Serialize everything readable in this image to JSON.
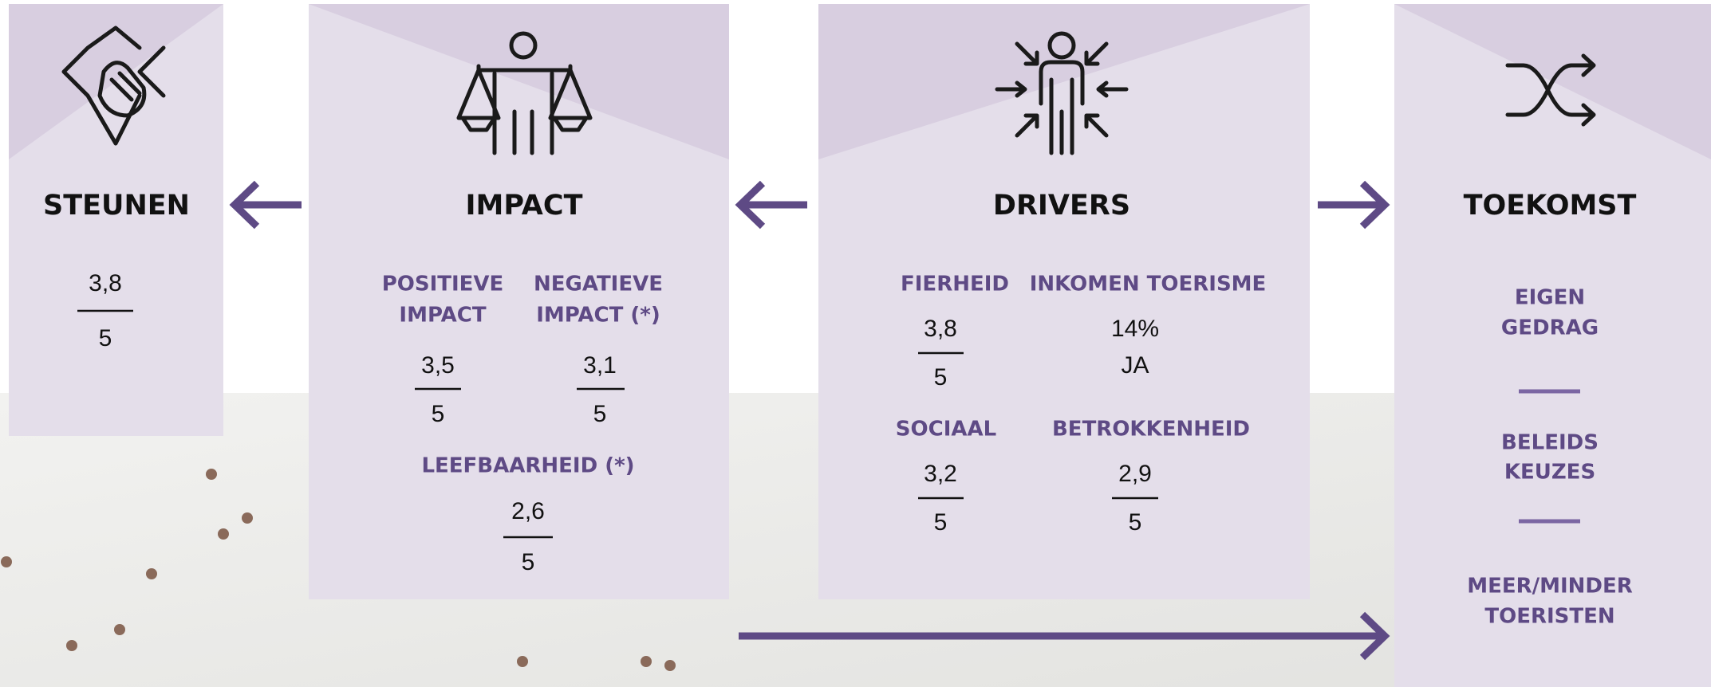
{
  "panels": [
    {
      "title": "STEUNEN",
      "items": [
        {
          "value": "3,8",
          "max": "5"
        }
      ]
    },
    {
      "title": "IMPACT",
      "items": [
        {
          "label": [
            "POSITIEVE",
            "IMPACT"
          ],
          "value": "3,5",
          "max": "5"
        },
        {
          "label": [
            "NEGATIEVE",
            "IMPACT (*)"
          ],
          "value": "3,1",
          "max": "5"
        },
        {
          "label": [
            "LEEFBAARHEID (*)"
          ],
          "value": "2,6",
          "max": "5"
        }
      ]
    },
    {
      "title": "DRIVERS",
      "items": [
        {
          "label": [
            "FIERHEID"
          ],
          "value": "3,8",
          "max": "5"
        },
        {
          "label": [
            "INKOMEN TOERISME"
          ],
          "value": "14%",
          "max": "JA"
        },
        {
          "label": [
            "SOCIAAL"
          ],
          "value": "3,2",
          "max": "5"
        },
        {
          "label": [
            "BETROKKENHEID"
          ],
          "value": "2,9",
          "max": "5"
        }
      ]
    },
    {
      "title": "TOEKOMST",
      "items": [
        {
          "label": [
            "EIGEN",
            "GEDRAG"
          ]
        },
        {
          "label": [
            "BELEIDS",
            "KEUZES"
          ]
        },
        {
          "label": [
            "MEER/MINDER",
            "TOERISTEN"
          ]
        }
      ]
    }
  ]
}
